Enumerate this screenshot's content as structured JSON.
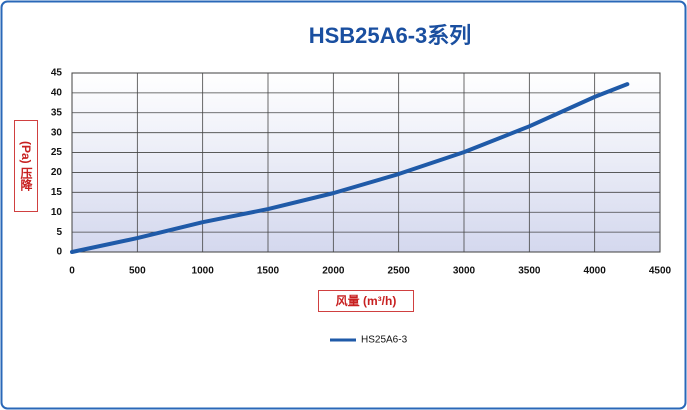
{
  "chart_data": {
    "type": "line",
    "title": "HSB25A6-3系列",
    "y_label": "(Pa) 压降",
    "x_label": "风量 (m³/h)",
    "x": [
      0,
      500,
      1000,
      1500,
      2000,
      2500,
      3000,
      3500,
      4000,
      4250
    ],
    "series": [
      {
        "name": "HS25A6-3",
        "color": "#1f5aa8",
        "values": [
          0,
          3.5,
          7.5,
          10.8,
          14.8,
          19.6,
          25.1,
          31.6,
          39,
          42.2
        ]
      }
    ],
    "xlim": [
      0,
      4500
    ],
    "xticks": [
      0,
      500,
      1000,
      1500,
      2000,
      2500,
      3000,
      3500,
      4000,
      4500
    ],
    "ylim": [
      0,
      45
    ],
    "yticks": [
      0,
      5,
      10,
      15,
      20,
      25,
      30,
      35,
      40,
      45
    ],
    "grid": true
  }
}
